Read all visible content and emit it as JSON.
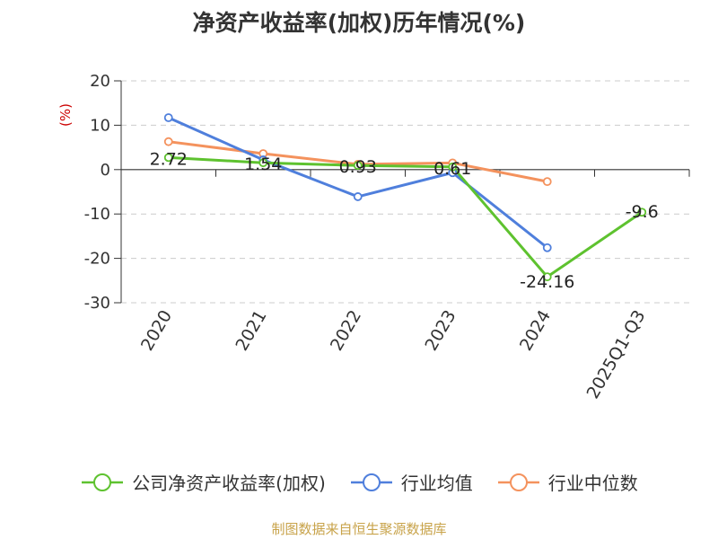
{
  "title": "净资产收益率(加权)历年情况(%)",
  "source": "制图数据来自恒生聚源数据库",
  "chart_data": {
    "type": "line",
    "categories": [
      "2020",
      "2021",
      "2022",
      "2023",
      "2024",
      "2025Q1-Q3"
    ],
    "ylabel": "(%)",
    "ylim": [
      -30,
      20
    ],
    "yticks": [
      20,
      10,
      0,
      -10,
      -20,
      -30
    ],
    "grid": true,
    "legend_position": "bottom",
    "series": [
      {
        "name": "公司净资产收益率(加权)",
        "color": "#5ec22f",
        "values": [
          2.72,
          1.54,
          0.93,
          0.61,
          -24.16,
          -9.6
        ],
        "labels": [
          "2.72",
          "1.54",
          "0.93",
          "0.61",
          "-24.16",
          "-9.6"
        ]
      },
      {
        "name": "行业均值",
        "color": "#4f7fdc",
        "values": [
          11.7,
          2.2,
          -6.1,
          -0.7,
          -17.6,
          null
        ]
      },
      {
        "name": "行业中位数",
        "color": "#f4925d",
        "values": [
          6.3,
          3.6,
          1.2,
          1.5,
          -2.7,
          null
        ]
      }
    ]
  }
}
